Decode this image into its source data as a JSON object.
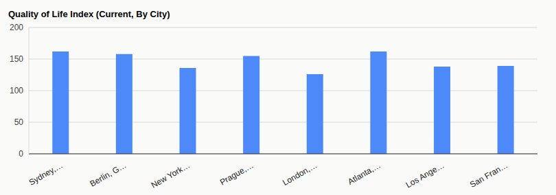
{
  "chart_data": {
    "type": "bar",
    "title": "Quality of Life Index (Current, By City)",
    "categories": [
      "Sydney,…",
      "Berlin, G…",
      "New York…",
      "Prague,…",
      "London,…",
      "Atlanta,…",
      "Los Ange…",
      "San Fran…"
    ],
    "values": [
      162,
      158,
      136,
      155,
      126,
      162,
      138,
      139
    ],
    "color": "#4d89f9",
    "ylim": [
      0,
      200
    ],
    "yticks": [
      0,
      50,
      100,
      150,
      200
    ],
    "grid": true
  }
}
